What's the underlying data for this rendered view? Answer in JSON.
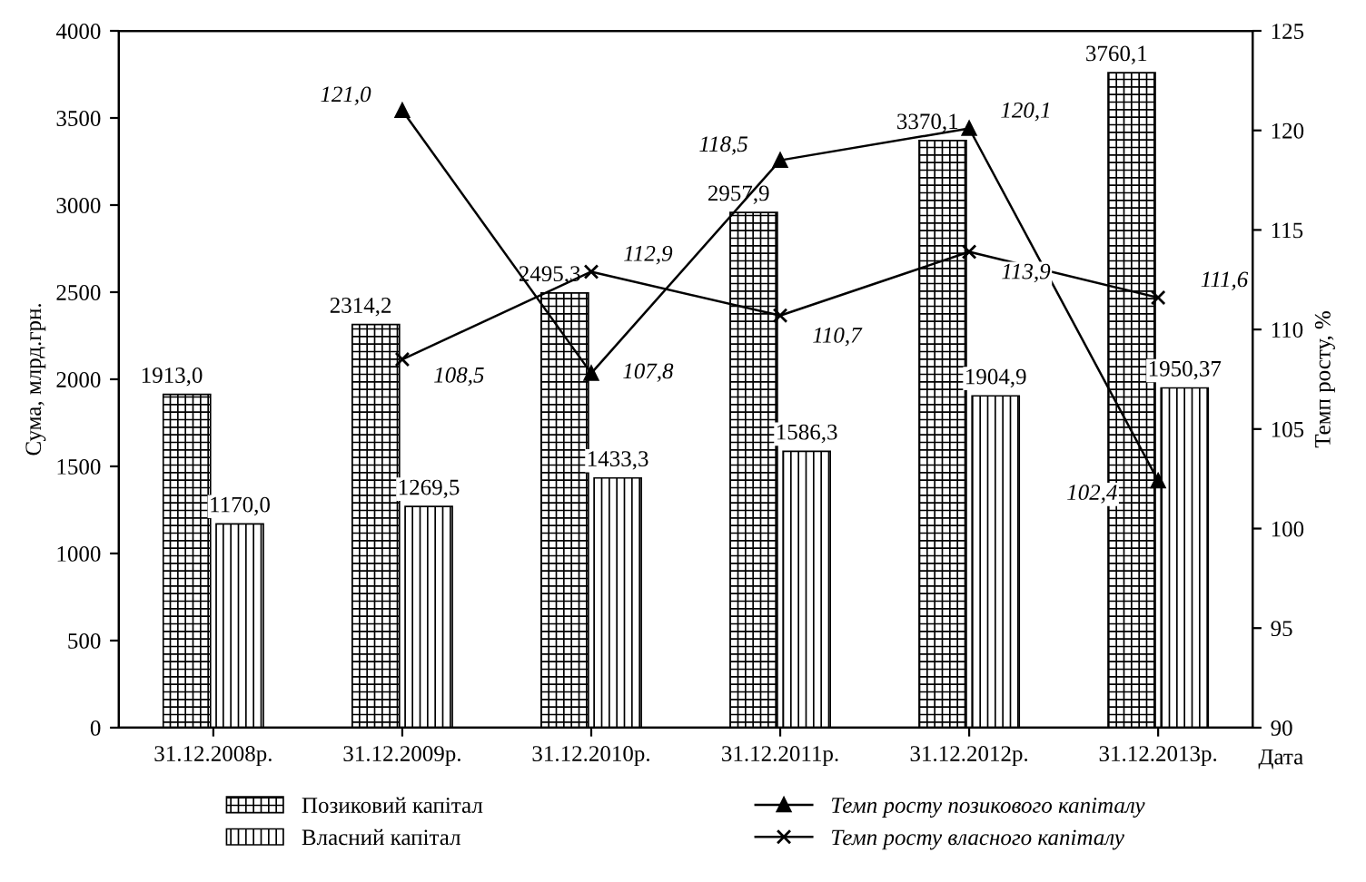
{
  "chart_data": {
    "type": "bar",
    "categories": [
      "31.12.2008р.",
      "31.12.2009р.",
      "31.12.2010р.",
      "31.12.2011р.",
      "31.12.2012р.",
      "31.12.2013р."
    ],
    "xlabel": "Дата",
    "ylabel": "Сума, млрд.грн.",
    "y2label": "Темп росту, %",
    "ylim": [
      0,
      4000
    ],
    "yticks": [
      0,
      500,
      1000,
      1500,
      2000,
      2500,
      3000,
      3500,
      4000
    ],
    "y2lim": [
      90,
      125
    ],
    "y2ticks": [
      90,
      95,
      100,
      105,
      110,
      115,
      120,
      125
    ],
    "legend": "bottom",
    "grid": false,
    "series": [
      {
        "name": "Позиковий капітал",
        "color": "#000000",
        "values": [
          1913.0,
          2314.2,
          2495.3,
          2957.9,
          3370.1,
          3760.1
        ],
        "value_labels": [
          "1913,0",
          "2314,2",
          "2495,3",
          "2957,9",
          "3370,1",
          "3760,1"
        ]
      },
      {
        "name": "Власний капітал",
        "color": "#000000",
        "values": [
          1170.0,
          1269.5,
          1433.3,
          1586.3,
          1904.9,
          1950.37
        ],
        "value_labels": [
          "1170,0",
          "1269,5",
          "1433,3",
          "1586,3",
          "1904,9",
          "1950,37"
        ]
      },
      {
        "name": "Темп росту позикового капіталу",
        "type": "line",
        "axis": "y2",
        "marker": "triangle",
        "color": "#000000",
        "values": [
          null,
          121.0,
          107.8,
          118.5,
          120.1,
          102.4
        ],
        "value_labels": [
          null,
          "121,0",
          "107,8",
          "118,5",
          "120,1",
          "102,4"
        ]
      },
      {
        "name": "Темп росту власного капіталу",
        "type": "line",
        "axis": "y2",
        "marker": "cross",
        "color": "#000000",
        "values": [
          null,
          108.5,
          112.9,
          110.7,
          113.9,
          111.6
        ],
        "value_labels": [
          null,
          "108,5",
          "112,9",
          "110,7",
          "113,9",
          "111,6"
        ]
      }
    ]
  }
}
